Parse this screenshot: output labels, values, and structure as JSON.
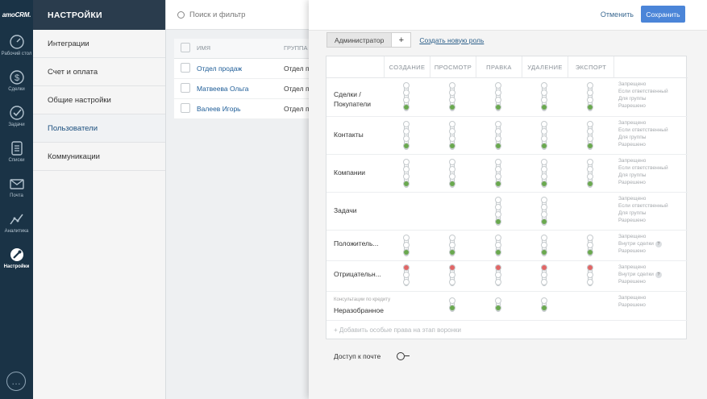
{
  "rail": {
    "logo": "amoCRM.",
    "items": [
      {
        "label": "Рабочий стол",
        "icon": "dashboard-icon"
      },
      {
        "label": "Сделки",
        "icon": "dollar-icon"
      },
      {
        "label": "Задачи",
        "icon": "checkmark-icon"
      },
      {
        "label": "Списки",
        "icon": "list-icon"
      },
      {
        "label": "Почта",
        "icon": "mail-icon"
      },
      {
        "label": "Аналитика",
        "icon": "analytics-icon"
      },
      {
        "label": "Настройки",
        "icon": "settings-icon",
        "active": true
      }
    ],
    "chat_icon": "chat-icon"
  },
  "settings_menu": {
    "title": "НАСТРОЙКИ",
    "items": [
      {
        "label": "Интеграции"
      },
      {
        "label": "Счет и оплата"
      },
      {
        "label": "Общие настройки"
      },
      {
        "label": "Пользователи",
        "active": true
      },
      {
        "label": "Коммуникации"
      }
    ]
  },
  "users": {
    "search_placeholder": "Поиск и фильтр",
    "columns": [
      "ИМЯ",
      "ГРУППА"
    ],
    "rows": [
      {
        "name": "Отдел продаж",
        "group": "Отдел п"
      },
      {
        "name": "Матвеева Ольга",
        "group": "Отдел п"
      },
      {
        "name": "Валеев Игорь",
        "group": "Отдел п"
      }
    ]
  },
  "panel": {
    "cancel_label": "Отменить",
    "save_label": "Сохранить",
    "role_tab": "Администратор",
    "add_role_symbol": "+",
    "new_role_link": "Создать новую роль",
    "columns": [
      "СОЗДАНИЕ",
      "ПРОСМОТР",
      "ПРАВКА",
      "УДАЛЕНИЕ",
      "ЭКСПОРТ"
    ],
    "rows": [
      {
        "label": "Сделки / Покупатели",
        "legend": [
          "Запрещено",
          "Если ответственный",
          "Для группы",
          "Разрешено"
        ]
      },
      {
        "label": "Контакты",
        "legend": [
          "Запрещено",
          "Если ответственный",
          "Для группы",
          "Разрешено"
        ]
      },
      {
        "label": "Компании",
        "legend": [
          "Запрещено",
          "Если ответственный",
          "Для группы",
          "Разрешено"
        ]
      },
      {
        "label": "Задачи",
        "legend": [
          "Запрещено",
          "Если ответственный",
          "Для группы",
          "Разрешено"
        ]
      },
      {
        "label": "Положитель...",
        "legend": [
          "Запрещено",
          "Внутри сделки",
          "Разрешено"
        ],
        "help": "?"
      },
      {
        "label": "Отрицательн...",
        "legend": [
          "Запрещено",
          "Внутри сделки",
          "Разрешено"
        ],
        "help": "?"
      },
      {
        "label": "Неразобранное",
        "sublabel": "Консультации по кредиту",
        "legend": [
          "Запрещено",
          "Разрешено"
        ]
      }
    ],
    "add_rule": "+ Добавить особые права на этап воронки",
    "mail_access_label": "Доступ к почте",
    "colors": {
      "allowed": "#6aa84f",
      "denied": "#e06666",
      "accent": "#4b85d8"
    }
  }
}
